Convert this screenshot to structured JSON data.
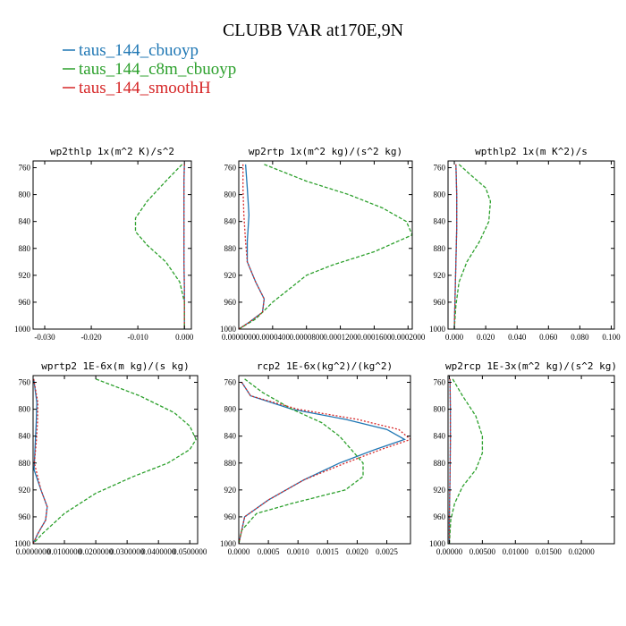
{
  "figure": {
    "title": "CLUBB VAR at170E,9N",
    "legend": [
      {
        "label": "taus_144_cbuoyp",
        "color": "#1f77b4"
      },
      {
        "label": "taus_144_c8m_cbuoyp",
        "color": "#2ca02c"
      },
      {
        "label": "taus_144_smoothH",
        "color": "#d62728"
      }
    ]
  },
  "chart_data": [
    {
      "type": "line",
      "title": "wp2thlp   1x(m^2 K)/s^2",
      "ylim": [
        1000,
        750
      ],
      "yticks": [
        760,
        800,
        840,
        880,
        920,
        960,
        1000
      ],
      "xlim": [
        -0.0325,
        0.0015
      ],
      "xticks": [
        -0.03,
        -0.02,
        -0.01,
        0.0
      ],
      "xtick_labels": [
        "-0.030",
        "-0.020",
        "-0.010",
        "0.000"
      ],
      "series": [
        {
          "name": "taus_144_cbuoyp",
          "color": "#1f77b4",
          "dash": "",
          "points": [
            [
              0.0,
              755
            ],
            [
              -0.0001,
              780
            ],
            [
              -0.0001,
              820
            ],
            [
              -0.0001,
              860
            ],
            [
              -0.0001,
              900
            ],
            [
              0.0,
              940
            ],
            [
              0.0,
              980
            ],
            [
              0.0,
              1000
            ]
          ]
        },
        {
          "name": "taus_144_c8m_cbuoyp",
          "color": "#2ca02c",
          "dash": "4,2",
          "points": [
            [
              -0.0005,
              755
            ],
            [
              -0.004,
              780
            ],
            [
              -0.008,
              810
            ],
            [
              -0.0105,
              835
            ],
            [
              -0.0105,
              855
            ],
            [
              -0.008,
              875
            ],
            [
              -0.004,
              900
            ],
            [
              -0.001,
              930
            ],
            [
              0.0,
              960
            ],
            [
              0.0,
              1000
            ]
          ]
        },
        {
          "name": "taus_144_smoothH",
          "color": "#d62728",
          "dash": "2,2",
          "points": [
            [
              0.0,
              755
            ],
            [
              -0.0001,
              780
            ],
            [
              -0.0001,
              820
            ],
            [
              -0.0001,
              860
            ],
            [
              -0.0001,
              900
            ],
            [
              0.0,
              940
            ],
            [
              0.0,
              980
            ],
            [
              0.0,
              1000
            ]
          ]
        }
      ]
    },
    {
      "type": "line",
      "title": "wp2rtp   1x(m^2 kg)/(s^2 kg)",
      "ylim": [
        1000,
        750
      ],
      "yticks": [
        760,
        800,
        840,
        880,
        920,
        960,
        1000
      ],
      "xlim": [
        0,
        0.000205
      ],
      "xticks": [
        0,
        4e-05,
        8e-05,
        0.00012,
        0.00016,
        0.0002
      ],
      "xtick_labels": [
        "0.0000000",
        "0.0000400",
        "0.0000800",
        "0.0001200",
        "0.0001600",
        "0.0002000"
      ],
      "series": [
        {
          "name": "taus_144_cbuoyp",
          "color": "#1f77b4",
          "dash": "",
          "points": [
            [
              8e-06,
              755
            ],
            [
              1e-05,
              790
            ],
            [
              1.2e-05,
              830
            ],
            [
              1e-05,
              870
            ],
            [
              1e-05,
              900
            ],
            [
              2e-05,
              930
            ],
            [
              3e-05,
              955
            ],
            [
              2.8e-05,
              975
            ],
            [
              1.2e-05,
              990
            ],
            [
              0.0,
              1000
            ]
          ]
        },
        {
          "name": "taus_144_c8m_cbuoyp",
          "color": "#2ca02c",
          "dash": "4,2",
          "points": [
            [
              3e-05,
              755
            ],
            [
              8e-05,
              780
            ],
            [
              0.00013,
              800
            ],
            [
              0.00017,
              820
            ],
            [
              0.000198,
              840
            ],
            [
              0.000205,
              860
            ],
            [
              0.00016,
              885
            ],
            [
              0.00011,
              905
            ],
            [
              8e-05,
              920
            ],
            [
              6e-05,
              940
            ],
            [
              4e-05,
              960
            ],
            [
              2e-05,
              985
            ],
            [
              0.0,
              1000
            ]
          ]
        },
        {
          "name": "taus_144_smoothH",
          "color": "#d62728",
          "dash": "2,2",
          "points": [
            [
              5e-06,
              755
            ],
            [
              5e-06,
              790
            ],
            [
              6e-06,
              830
            ],
            [
              8e-06,
              870
            ],
            [
              1e-05,
              900
            ],
            [
              2e-05,
              930
            ],
            [
              3e-05,
              955
            ],
            [
              2.8e-05,
              975
            ],
            [
              1.2e-05,
              990
            ],
            [
              0.0,
              1000
            ]
          ]
        }
      ]
    },
    {
      "type": "line",
      "title": "wpthlp2   1x(m K^2)/s",
      "ylim": [
        1000,
        750
      ],
      "yticks": [
        760,
        800,
        840,
        880,
        920,
        960,
        1000
      ],
      "xlim": [
        -0.004,
        0.102
      ],
      "xticks": [
        0,
        0.02,
        0.04,
        0.06,
        0.08,
        0.1
      ],
      "xtick_labels": [
        "0.000",
        "0.020",
        "0.040",
        "0.060",
        "0.080",
        "0.100"
      ],
      "series": [
        {
          "name": "taus_144_cbuoyp",
          "color": "#1f77b4",
          "dash": "",
          "points": [
            [
              0.001,
              755
            ],
            [
              0.0015,
              800
            ],
            [
              0.0015,
              850
            ],
            [
              0.001,
              900
            ],
            [
              0.0005,
              950
            ],
            [
              0.0,
              1000
            ]
          ]
        },
        {
          "name": "taus_144_c8m_cbuoyp",
          "color": "#2ca02c",
          "dash": "4,2",
          "points": [
            [
              0.003,
              755
            ],
            [
              0.01,
              770
            ],
            [
              0.02,
              790
            ],
            [
              0.023,
              810
            ],
            [
              0.022,
              840
            ],
            [
              0.016,
              870
            ],
            [
              0.008,
              900
            ],
            [
              0.003,
              930
            ],
            [
              0.001,
              965
            ],
            [
              0.0,
              1000
            ]
          ]
        },
        {
          "name": "taus_144_smoothH",
          "color": "#d62728",
          "dash": "2,2",
          "points": [
            [
              0.001,
              755
            ],
            [
              0.0015,
              800
            ],
            [
              0.0015,
              850
            ],
            [
              0.001,
              900
            ],
            [
              0.0005,
              950
            ],
            [
              0.0,
              1000
            ]
          ]
        }
      ]
    },
    {
      "type": "line",
      "title": "wprtp2   1E-6x(m kg)/(s kg)",
      "ylim": [
        1000,
        750
      ],
      "yticks": [
        760,
        800,
        840,
        880,
        920,
        960,
        1000
      ],
      "xlim": [
        0,
        0.0525
      ],
      "xticks": [
        0,
        0.01,
        0.02,
        0.03,
        0.04,
        0.05
      ],
      "xtick_labels": [
        "0.0000000",
        "0.0100000",
        "0.0200000",
        "0.0300000",
        "0.0400000",
        "0.0500000"
      ],
      "series": [
        {
          "name": "taus_144_cbuoyp",
          "color": "#1f77b4",
          "dash": "",
          "points": [
            [
              0.0002,
              755
            ],
            [
              0.0012,
              790
            ],
            [
              0.001,
              820
            ],
            [
              0.0006,
              860
            ],
            [
              0.0003,
              890
            ],
            [
              0.0025,
              920
            ],
            [
              0.0045,
              945
            ],
            [
              0.004,
              965
            ],
            [
              0.0015,
              985
            ],
            [
              0.0,
              1000
            ]
          ]
        },
        {
          "name": "taus_144_c8m_cbuoyp",
          "color": "#2ca02c",
          "dash": "4,2",
          "points": [
            [
              0.02,
              755
            ],
            [
              0.034,
              780
            ],
            [
              0.045,
              805
            ],
            [
              0.05,
              825
            ],
            [
              0.052,
              845
            ],
            [
              0.05,
              860
            ],
            [
              0.043,
              880
            ],
            [
              0.032,
              900
            ],
            [
              0.02,
              925
            ],
            [
              0.01,
              955
            ],
            [
              0.003,
              985
            ],
            [
              0.0,
              1000
            ]
          ]
        },
        {
          "name": "taus_144_smoothH",
          "color": "#d62728",
          "dash": "2,2",
          "points": [
            [
              0.0002,
              755
            ],
            [
              0.0015,
              790
            ],
            [
              0.0014,
              820
            ],
            [
              0.001,
              850
            ],
            [
              0.0004,
              880
            ],
            [
              0.0025,
              920
            ],
            [
              0.0045,
              945
            ],
            [
              0.004,
              965
            ],
            [
              0.0015,
              985
            ],
            [
              0.0,
              1000
            ]
          ]
        }
      ]
    },
    {
      "type": "line",
      "title": "rcp2   1E-6x(kg^2)/(kg^2)",
      "ylim": [
        1000,
        750
      ],
      "yticks": [
        760,
        800,
        840,
        880,
        920,
        960,
        1000
      ],
      "xlim": [
        0,
        0.0029
      ],
      "xticks": [
        0,
        0.0005,
        0.001,
        0.0015,
        0.002,
        0.0025
      ],
      "xtick_labels": [
        "0.0000",
        "0.0005",
        "0.0010",
        "0.0015",
        "0.0020",
        "0.0025"
      ],
      "series": [
        {
          "name": "taus_144_cbuoyp",
          "color": "#1f77b4",
          "dash": "",
          "points": [
            [
              5e-05,
              760
            ],
            [
              0.0002,
              780
            ],
            [
              0.0009,
              800
            ],
            [
              0.0018,
              815
            ],
            [
              0.0025,
              830
            ],
            [
              0.0028,
              845
            ],
            [
              0.0023,
              860
            ],
            [
              0.0017,
              880
            ],
            [
              0.0011,
              905
            ],
            [
              0.0005,
              935
            ],
            [
              0.0001,
              960
            ],
            [
              0.0,
              1000
            ]
          ]
        },
        {
          "name": "taus_144_c8m_cbuoyp",
          "color": "#2ca02c",
          "dash": "4,2",
          "points": [
            [
              0.0001,
              755
            ],
            [
              0.0004,
              775
            ],
            [
              0.0009,
              800
            ],
            [
              0.0014,
              820
            ],
            [
              0.0017,
              840
            ],
            [
              0.0019,
              860
            ],
            [
              0.0021,
              880
            ],
            [
              0.0021,
              900
            ],
            [
              0.0018,
              920
            ],
            [
              0.0009,
              940
            ],
            [
              0.0003,
              955
            ],
            [
              5e-05,
              980
            ],
            [
              0.0,
              1000
            ]
          ]
        },
        {
          "name": "taus_144_smoothH",
          "color": "#d62728",
          "dash": "2,2",
          "points": [
            [
              5e-05,
              760
            ],
            [
              0.0002,
              780
            ],
            [
              0.001,
              800
            ],
            [
              0.002,
              815
            ],
            [
              0.0027,
              830
            ],
            [
              0.0029,
              845
            ],
            [
              0.0024,
              860
            ],
            [
              0.0018,
              880
            ],
            [
              0.0011,
              905
            ],
            [
              0.0005,
              935
            ],
            [
              0.0001,
              960
            ],
            [
              0.0,
              1000
            ]
          ]
        }
      ]
    },
    {
      "type": "line",
      "title": "wp2rcp   1E-3x(m^2 kg)/(s^2 kg)",
      "ylim": [
        1000,
        750
      ],
      "yticks": [
        760,
        800,
        840,
        880,
        920,
        960,
        1000
      ],
      "xlim": [
        -0.0002,
        0.025
      ],
      "xticks": [
        0,
        0.005,
        0.01,
        0.015,
        0.02
      ],
      "xtick_labels": [
        "0.00000",
        "0.00500",
        "0.01000",
        "0.01500",
        "0.02000"
      ],
      "series": [
        {
          "name": "taus_144_cbuoyp",
          "color": "#1f77b4",
          "dash": "",
          "points": [
            [
              0.0001,
              755
            ],
            [
              0.00015,
              800
            ],
            [
              0.00015,
              850
            ],
            [
              0.0001,
              900
            ],
            [
              0.0,
              960
            ],
            [
              0.0,
              1000
            ]
          ]
        },
        {
          "name": "taus_144_c8m_cbuoyp",
          "color": "#2ca02c",
          "dash": "4,2",
          "points": [
            [
              0.0005,
              755
            ],
            [
              0.002,
              780
            ],
            [
              0.004,
              810
            ],
            [
              0.005,
              840
            ],
            [
              0.005,
              865
            ],
            [
              0.004,
              890
            ],
            [
              0.002,
              915
            ],
            [
              0.0008,
              940
            ],
            [
              0.0002,
              965
            ],
            [
              0.0,
              1000
            ]
          ]
        },
        {
          "name": "taus_144_smoothH",
          "color": "#d62728",
          "dash": "2,2",
          "points": [
            [
              0.0001,
              755
            ],
            [
              0.00015,
              800
            ],
            [
              0.00015,
              850
            ],
            [
              0.0001,
              900
            ],
            [
              0.0,
              960
            ],
            [
              0.0,
              1000
            ]
          ]
        }
      ]
    }
  ]
}
